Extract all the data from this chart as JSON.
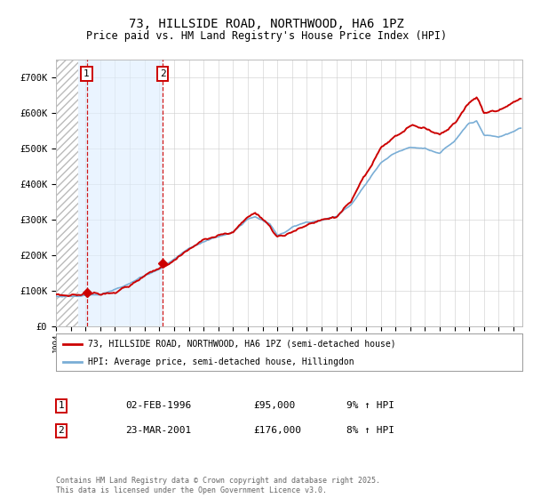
{
  "title1": "73, HILLSIDE ROAD, NORTHWOOD, HA6 1PZ",
  "title2": "Price paid vs. HM Land Registry's House Price Index (HPI)",
  "bg_color": "#ffffff",
  "plot_bg_color": "#ffffff",
  "grid_color": "#cccccc",
  "hatch_region_end": 1995.5,
  "shade_start": 1995.5,
  "shade_end": 2001.25,
  "vline1_x": 1996.08,
  "vline2_x": 2001.23,
  "marker1_y": 95000,
  "marker2_y": 176000,
  "red_color": "#cc0000",
  "blue_color": "#7aaed6",
  "legend_label_red": "73, HILLSIDE ROAD, NORTHWOOD, HA6 1PZ (semi-detached house)",
  "legend_label_blue": "HPI: Average price, semi-detached house, Hillingdon",
  "label1_num": "1",
  "label1_date": "02-FEB-1996",
  "label1_price": "£95,000",
  "label1_hpi": "9% ↑ HPI",
  "label2_num": "2",
  "label2_date": "23-MAR-2001",
  "label2_price": "£176,000",
  "label2_hpi": "8% ↑ HPI",
  "footer": "Contains HM Land Registry data © Crown copyright and database right 2025.\nThis data is licensed under the Open Government Licence v3.0.",
  "ylim": [
    0,
    750000
  ],
  "xlim_start": 1994.0,
  "xlim_end": 2025.6
}
